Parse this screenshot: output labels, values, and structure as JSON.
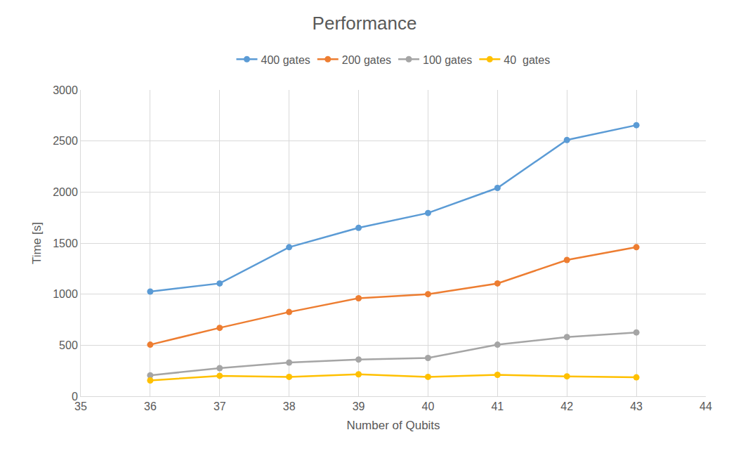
{
  "chart_data": {
    "type": "line",
    "title": "Performance",
    "x_label": "Number of Qubits",
    "y_label": "Time [s]",
    "x": [
      36,
      37,
      38,
      39,
      40,
      41,
      42,
      43
    ],
    "series": [
      {
        "name": "400 gates",
        "color": "#5b9bd5",
        "marker": "circle",
        "values": [
          1025,
          1105,
          1460,
          1650,
          1795,
          2040,
          2510,
          2655
        ]
      },
      {
        "name": "200 gates",
        "color": "#ed7d31",
        "marker": "circle",
        "values": [
          505,
          670,
          825,
          960,
          1000,
          1105,
          1335,
          1460
        ]
      },
      {
        "name": "100 gates",
        "color": "#a5a5a5",
        "marker": "circle",
        "values": [
          205,
          275,
          330,
          360,
          375,
          505,
          580,
          625
        ]
      },
      {
        "name": "40  gates",
        "color": "#ffc000",
        "marker": "circle",
        "values": [
          155,
          200,
          190,
          215,
          190,
          210,
          195,
          185
        ]
      }
    ],
    "xlim": [
      35,
      44
    ],
    "xticks": [
      35,
      36,
      37,
      38,
      39,
      40,
      41,
      42,
      43,
      44
    ],
    "ylim": [
      0,
      3000
    ],
    "yticks": [
      0,
      500,
      1000,
      1500,
      2000,
      2500,
      3000
    ],
    "grid": true,
    "legend": "top"
  }
}
